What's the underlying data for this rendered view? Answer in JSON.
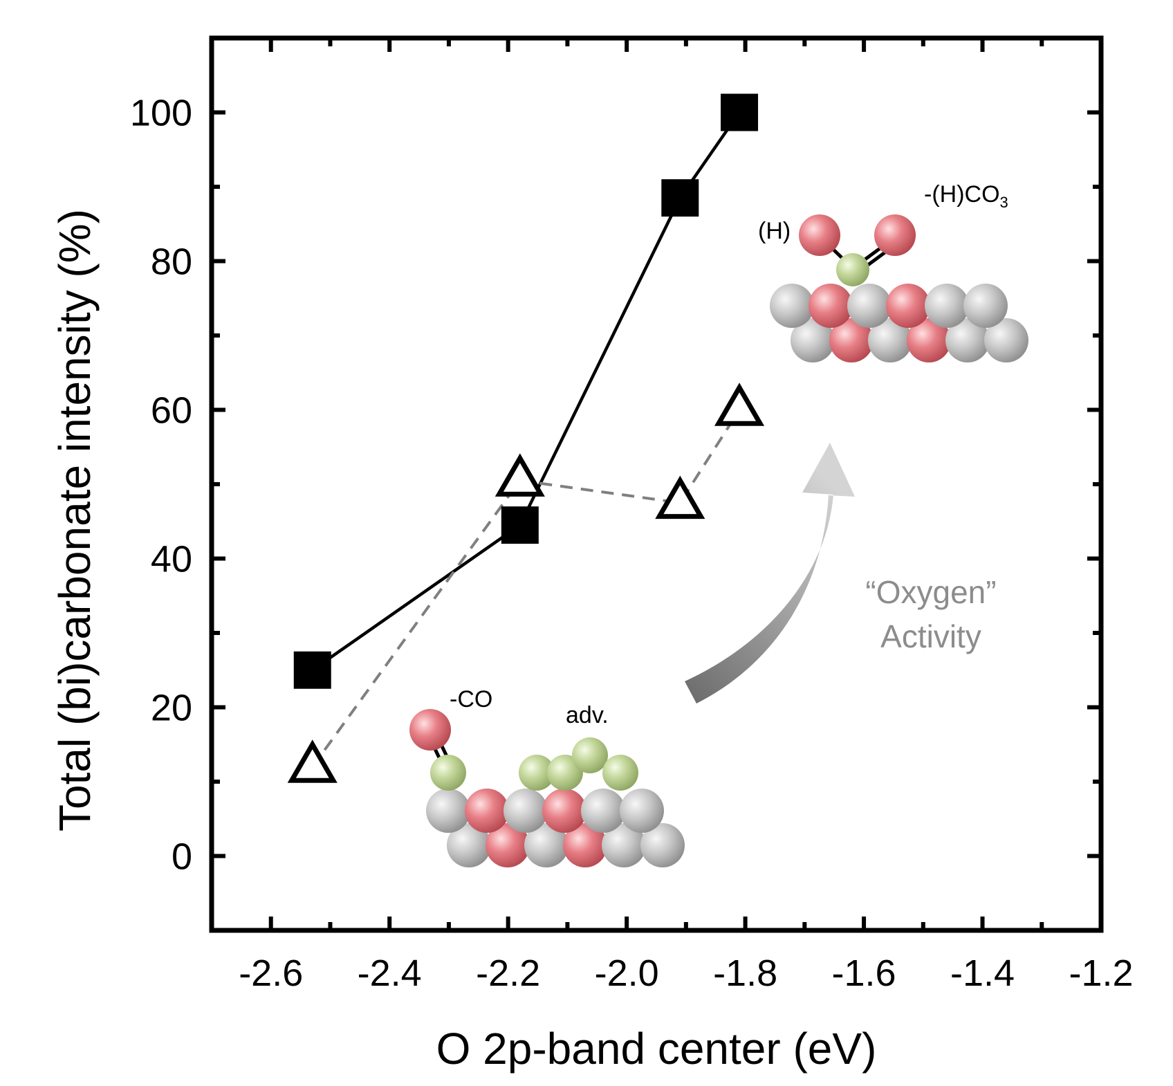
{
  "chart_data": {
    "type": "scatter",
    "title": "",
    "xlabel": "O 2p-band center (eV)",
    "ylabel": "Total (bi)carbonate intensity (%)",
    "xlim": [
      -2.7,
      -1.2
    ],
    "ylim": [
      -10,
      110
    ],
    "x_ticks": [
      -2.6,
      -2.4,
      -2.2,
      -2.0,
      -1.8,
      -1.6,
      -1.4,
      -1.2
    ],
    "x_tick_labels": [
      "-2.6",
      "-2.4",
      "-2.2",
      "-2.0",
      "-1.8",
      "-1.6",
      "-1.4",
      "-1.2"
    ],
    "y_ticks": [
      0,
      20,
      40,
      60,
      80,
      100
    ],
    "y_tick_labels": [
      "0",
      "20",
      "40",
      "60",
      "80",
      "100"
    ],
    "grid": false,
    "series": [
      {
        "marker": "filled-square",
        "line": "solid",
        "color": "#000000",
        "x": [
          -2.53,
          -2.18,
          -1.91,
          -1.81
        ],
        "y": [
          25,
          44.5,
          88.5,
          100
        ]
      },
      {
        "marker": "open-triangle",
        "line": "dashed",
        "color": "#808080",
        "x": [
          -2.53,
          -2.18,
          -1.91,
          -1.81
        ],
        "y": [
          12,
          50.5,
          47.5,
          60
        ]
      }
    ],
    "annotations": {
      "carbonate_label": "-(H)CO",
      "carbonate_sub": "3",
      "h_label": "(H)",
      "co_label": "-CO",
      "adv_label": "adv.",
      "oxygen_line1": "“Oxygen”",
      "oxygen_line2": "Activity"
    },
    "colors": {
      "oxygen_atom": "#d9666d",
      "carbon_atom": "#b9cf8c",
      "surface_atom": "#bdbdbd",
      "arrow_dark": "#6a6a6a",
      "arrow_light": "#d4d4d4"
    }
  }
}
